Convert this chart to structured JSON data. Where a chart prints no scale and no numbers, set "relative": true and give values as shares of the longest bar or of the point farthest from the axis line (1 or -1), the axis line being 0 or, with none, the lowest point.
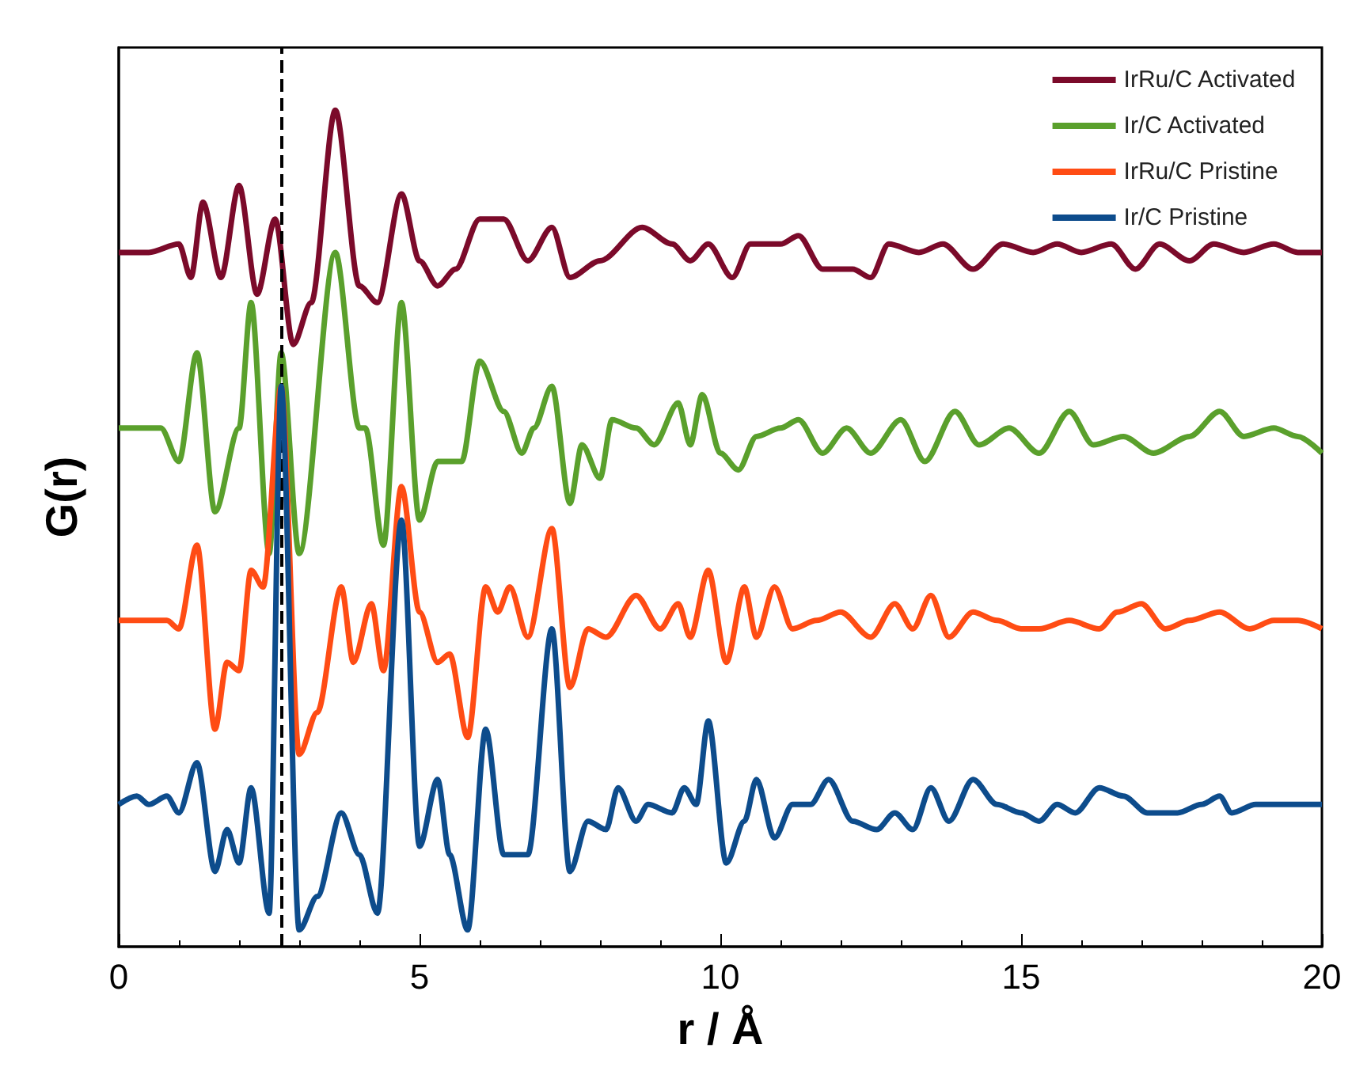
{
  "chart_data": {
    "type": "line",
    "relative": true,
    "xlabel": "r / Å",
    "ylabel": "G(r)",
    "xlim": [
      0,
      20
    ],
    "xticks": [
      0,
      5,
      10,
      15,
      20
    ],
    "grid": false,
    "legend": "top right",
    "marker": "none",
    "line_style": "solid",
    "series": [
      {
        "name": "IrRu/C Activated",
        "color": "#7b0a2a",
        "x": [
          0,
          0.5,
          1.0,
          1.2,
          1.4,
          1.7,
          2.0,
          2.3,
          2.6,
          2.9,
          3.2,
          3.6,
          4.0,
          4.3,
          4.7,
          5.0,
          5.3,
          5.6,
          6.0,
          6.4,
          6.8,
          7.2,
          7.5,
          8.0,
          8.7,
          9.2,
          9.5,
          9.8,
          10.2,
          10.5,
          11.0,
          11.3,
          11.7,
          12.2,
          12.5,
          12.8,
          13.3,
          13.7,
          14.2,
          14.7,
          15.2,
          15.6,
          16.0,
          16.5,
          16.9,
          17.3,
          17.8,
          18.2,
          18.7,
          19.2,
          19.6,
          20
        ],
        "values": [
          0.83,
          0.83,
          0.84,
          0.8,
          0.89,
          0.8,
          0.91,
          0.78,
          0.87,
          0.72,
          0.77,
          1.0,
          0.79,
          0.77,
          0.9,
          0.82,
          0.79,
          0.81,
          0.87,
          0.87,
          0.82,
          0.86,
          0.8,
          0.82,
          0.86,
          0.84,
          0.82,
          0.84,
          0.8,
          0.84,
          0.84,
          0.85,
          0.81,
          0.81,
          0.8,
          0.84,
          0.83,
          0.84,
          0.81,
          0.84,
          0.83,
          0.84,
          0.83,
          0.84,
          0.81,
          0.84,
          0.82,
          0.84,
          0.83,
          0.84,
          0.83,
          0.83
        ]
      },
      {
        "name": "Ir/C Activated",
        "color": "#5aa02c",
        "x": [
          0,
          0.7,
          1.0,
          1.3,
          1.6,
          2.0,
          2.2,
          2.5,
          2.7,
          3.0,
          3.6,
          4.0,
          4.1,
          4.4,
          4.7,
          5.0,
          5.3,
          5.7,
          6.0,
          6.4,
          6.7,
          6.9,
          7.2,
          7.5,
          7.7,
          8.0,
          8.2,
          8.6,
          8.9,
          9.3,
          9.5,
          9.7,
          10.0,
          10.3,
          10.6,
          11.0,
          11.3,
          11.7,
          12.1,
          12.5,
          13.0,
          13.4,
          13.9,
          14.3,
          14.8,
          15.3,
          15.8,
          16.2,
          16.7,
          17.2,
          17.8,
          18.3,
          18.7,
          19.2,
          19.6,
          20
        ],
        "values": [
          0.62,
          0.62,
          0.58,
          0.71,
          0.52,
          0.62,
          0.77,
          0.47,
          0.71,
          0.47,
          0.83,
          0.62,
          0.62,
          0.48,
          0.77,
          0.51,
          0.58,
          0.58,
          0.7,
          0.64,
          0.59,
          0.62,
          0.67,
          0.53,
          0.6,
          0.56,
          0.63,
          0.62,
          0.6,
          0.65,
          0.6,
          0.66,
          0.59,
          0.57,
          0.61,
          0.62,
          0.63,
          0.59,
          0.62,
          0.59,
          0.63,
          0.58,
          0.64,
          0.6,
          0.62,
          0.59,
          0.64,
          0.6,
          0.61,
          0.59,
          0.61,
          0.64,
          0.61,
          0.62,
          0.61,
          0.59
        ]
      },
      {
        "name": "IrRu/C Pristine",
        "color": "#ff4c14",
        "x": [
          0,
          0.8,
          1.0,
          1.3,
          1.6,
          1.8,
          2.0,
          2.2,
          2.4,
          2.7,
          3.0,
          3.3,
          3.7,
          3.9,
          4.2,
          4.4,
          4.7,
          5.0,
          5.3,
          5.5,
          5.8,
          6.1,
          6.3,
          6.5,
          6.8,
          7.2,
          7.5,
          7.8,
          8.1,
          8.6,
          9.0,
          9.3,
          9.5,
          9.8,
          10.1,
          10.4,
          10.6,
          10.9,
          11.2,
          11.6,
          12.0,
          12.5,
          12.9,
          13.2,
          13.5,
          13.8,
          14.2,
          14.6,
          15.0,
          15.3,
          15.8,
          16.3,
          16.6,
          17.0,
          17.4,
          17.8,
          18.3,
          18.8,
          19.2,
          19.6,
          20
        ],
        "values": [
          0.39,
          0.39,
          0.38,
          0.48,
          0.26,
          0.34,
          0.33,
          0.45,
          0.43,
          0.67,
          0.23,
          0.28,
          0.43,
          0.34,
          0.41,
          0.33,
          0.55,
          0.4,
          0.34,
          0.35,
          0.25,
          0.43,
          0.4,
          0.43,
          0.37,
          0.5,
          0.31,
          0.38,
          0.37,
          0.42,
          0.38,
          0.41,
          0.37,
          0.45,
          0.34,
          0.43,
          0.37,
          0.43,
          0.38,
          0.39,
          0.4,
          0.37,
          0.41,
          0.38,
          0.42,
          0.37,
          0.4,
          0.39,
          0.38,
          0.38,
          0.39,
          0.38,
          0.4,
          0.41,
          0.38,
          0.39,
          0.4,
          0.38,
          0.39,
          0.39,
          0.38
        ]
      },
      {
        "name": "Ir/C Pristine",
        "color": "#0d4c8c",
        "x": [
          0,
          0.3,
          0.5,
          0.8,
          1.0,
          1.3,
          1.6,
          1.8,
          2.0,
          2.2,
          2.5,
          2.7,
          3.0,
          3.3,
          3.7,
          4.0,
          4.3,
          4.7,
          5.0,
          5.3,
          5.5,
          5.8,
          6.1,
          6.4,
          6.8,
          7.2,
          7.5,
          7.8,
          8.1,
          8.3,
          8.6,
          8.8,
          9.2,
          9.4,
          9.6,
          9.8,
          10.1,
          10.4,
          10.6,
          10.9,
          11.2,
          11.5,
          11.8,
          12.2,
          12.6,
          12.9,
          13.2,
          13.5,
          13.8,
          14.2,
          14.6,
          15.0,
          15.3,
          15.6,
          15.9,
          16.3,
          16.7,
          17.1,
          17.6,
          18.0,
          18.3,
          18.5,
          18.9,
          19.2,
          19.6,
          20
        ],
        "values": [
          0.17,
          0.18,
          0.17,
          0.18,
          0.16,
          0.22,
          0.09,
          0.14,
          0.1,
          0.19,
          0.04,
          0.67,
          0.02,
          0.06,
          0.16,
          0.11,
          0.04,
          0.51,
          0.12,
          0.2,
          0.11,
          0.02,
          0.26,
          0.11,
          0.11,
          0.38,
          0.09,
          0.15,
          0.14,
          0.19,
          0.15,
          0.17,
          0.16,
          0.19,
          0.17,
          0.27,
          0.1,
          0.15,
          0.2,
          0.13,
          0.17,
          0.17,
          0.2,
          0.15,
          0.14,
          0.16,
          0.14,
          0.19,
          0.15,
          0.2,
          0.17,
          0.16,
          0.15,
          0.17,
          0.16,
          0.19,
          0.18,
          0.16,
          0.16,
          0.17,
          0.18,
          0.16,
          0.17,
          0.17,
          0.17,
          0.17
        ]
      }
    ],
    "ref_lines": [
      {
        "axis": "x",
        "value": 2.7,
        "label": null,
        "color": "#000000",
        "line_style": "dashed"
      }
    ]
  }
}
